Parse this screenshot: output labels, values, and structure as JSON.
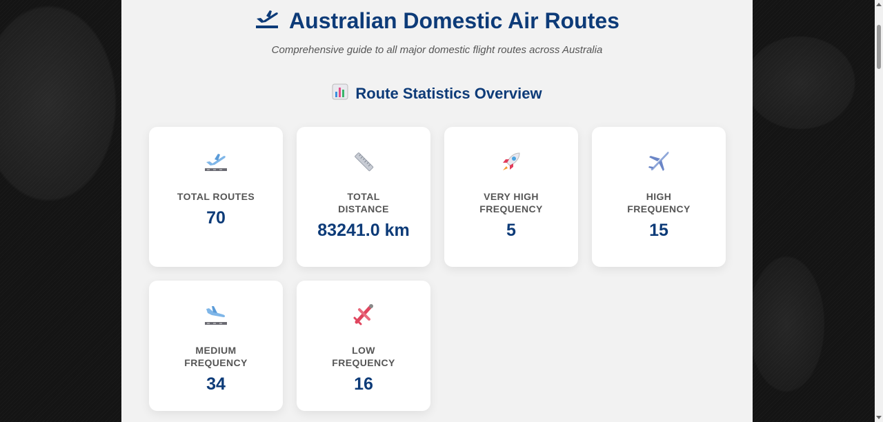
{
  "header": {
    "title": "Australian Domestic Air Routes",
    "title_icon": "airplane-departure-icon",
    "subtitle": "Comprehensive guide to all major domestic flight routes across Australia"
  },
  "stats": {
    "section_title": "Route Statistics Overview",
    "section_icon": "bar-chart-icon",
    "cards": [
      {
        "icon": "airplane-departure-icon",
        "label": "TOTAL ROUTES",
        "value": "70"
      },
      {
        "icon": "ruler-icon",
        "label": "TOTAL DISTANCE",
        "value": "83241.0 km"
      },
      {
        "icon": "rocket-icon",
        "label": "VERY HIGH FREQUENCY",
        "value": "5"
      },
      {
        "icon": "airplane-icon",
        "label": "HIGH FREQUENCY",
        "value": "15"
      },
      {
        "icon": "airplane-arrival-icon",
        "label": "MEDIUM FREQUENCY",
        "value": "34"
      },
      {
        "icon": "small-airplane-icon",
        "label": "LOW FREQUENCY",
        "value": "16"
      }
    ]
  },
  "colors": {
    "accent": "#0d3b78",
    "page_bg": "#f2f2f2",
    "card_bg": "#ffffff",
    "label": "#555555"
  }
}
